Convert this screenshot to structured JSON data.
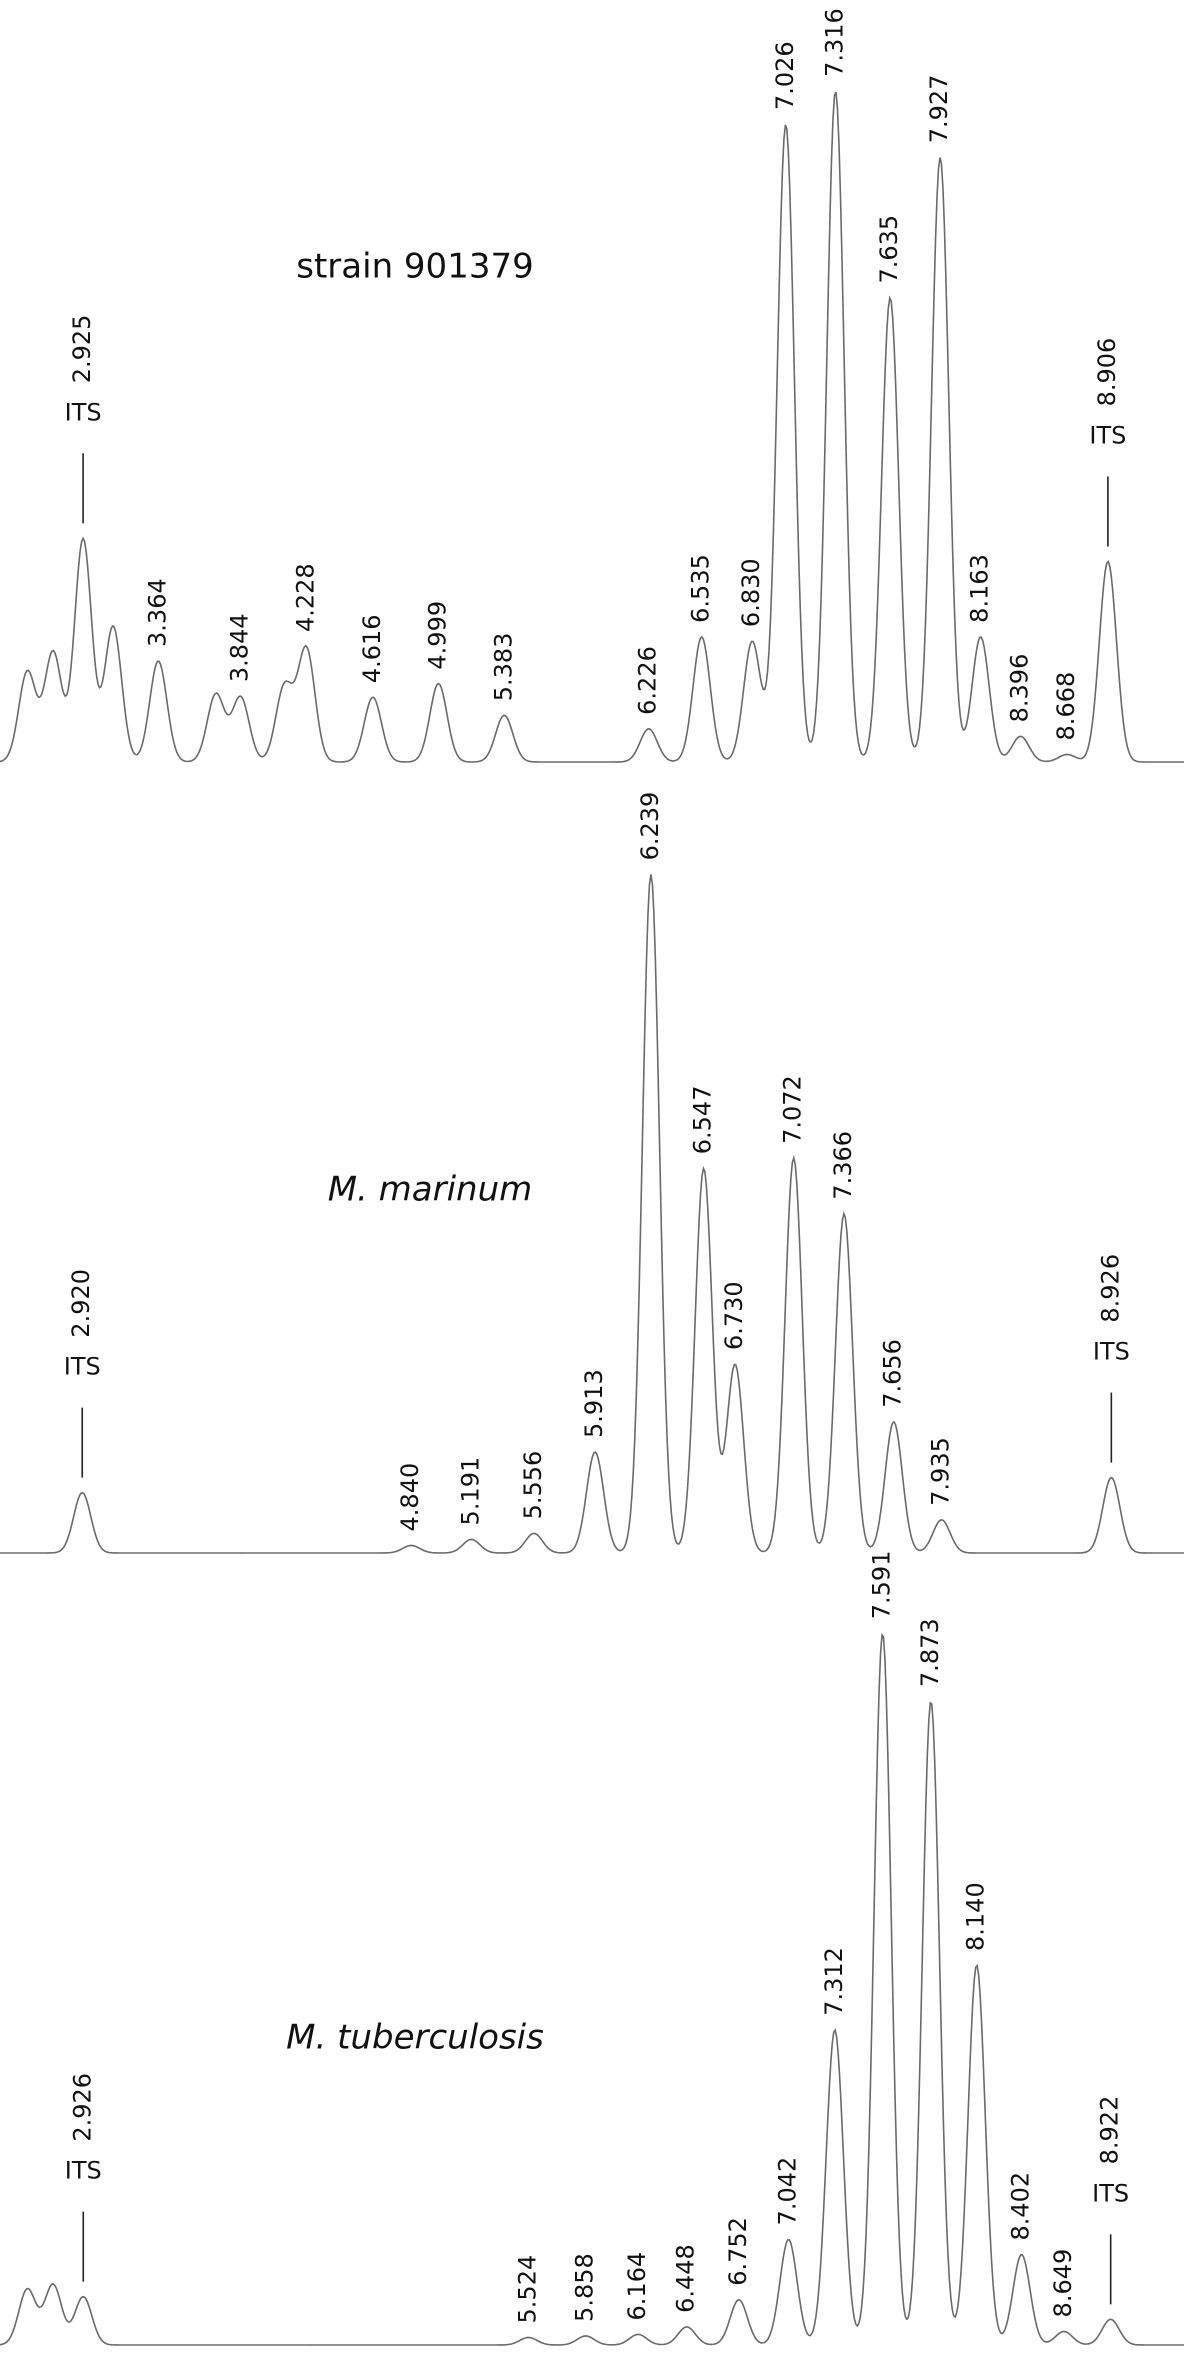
{
  "chart_data": [
    {
      "type": "chromatogram",
      "title": "strain 901379",
      "title_italic": false,
      "xlim": [
        2.44,
        9.35
      ],
      "peaks": [
        {
          "label": null,
          "x": 2.6,
          "height": 60
        },
        {
          "label": null,
          "x": 2.75,
          "height": 73
        },
        {
          "label": "2.925",
          "x": 2.925,
          "height": 148,
          "tag": "ITS"
        },
        {
          "label": null,
          "x": 3.1,
          "height": 90
        },
        {
          "label": "3.364",
          "x": 3.364,
          "height": 67
        },
        {
          "label": null,
          "x": 3.7,
          "height": 45
        },
        {
          "label": "3.844",
          "x": 3.844,
          "height": 43
        },
        {
          "label": null,
          "x": 4.1,
          "height": 50
        },
        {
          "label": "4.228",
          "x": 4.228,
          "height": 75
        },
        {
          "label": "4.616",
          "x": 4.616,
          "height": 43
        },
        {
          "label": "4.999",
          "x": 4.999,
          "height": 52
        },
        {
          "label": "5.383",
          "x": 5.383,
          "height": 31
        },
        {
          "label": "6.226",
          "x": 6.226,
          "height": 22
        },
        {
          "label": "6.535",
          "x": 6.535,
          "height": 83
        },
        {
          "label": "6.830",
          "x": 6.83,
          "height": 80
        },
        {
          "label": "7.026",
          "x": 7.026,
          "height": 423
        },
        {
          "label": "7.316",
          "x": 7.316,
          "height": 445
        },
        {
          "label": "7.635",
          "x": 7.635,
          "height": 308
        },
        {
          "label": "7.927",
          "x": 7.927,
          "height": 401
        },
        {
          "label": "8.163",
          "x": 8.163,
          "height": 83
        },
        {
          "label": "8.396",
          "x": 8.396,
          "height": 17
        },
        {
          "label": "8.668",
          "x": 8.668,
          "height": 5
        },
        {
          "label": "8.906",
          "x": 8.906,
          "height": 133,
          "tag": "ITS"
        }
      ]
    },
    {
      "type": "chromatogram",
      "title": "M. marinum",
      "title_italic": true,
      "xlim": [
        2.44,
        9.35
      ],
      "peaks": [
        {
          "label": "2.920",
          "x": 2.92,
          "height": 40,
          "tag": "ITS"
        },
        {
          "label": "4.840",
          "x": 4.84,
          "height": 5
        },
        {
          "label": "5.191",
          "x": 5.191,
          "height": 9
        },
        {
          "label": "5.556",
          "x": 5.556,
          "height": 13
        },
        {
          "label": "5.913",
          "x": 5.913,
          "height": 67
        },
        {
          "label": "6.239",
          "x": 6.239,
          "height": 450
        },
        {
          "label": "6.547",
          "x": 6.547,
          "height": 255
        },
        {
          "label": "6.730",
          "x": 6.73,
          "height": 125
        },
        {
          "label": "7.072",
          "x": 7.072,
          "height": 262
        },
        {
          "label": "7.366",
          "x": 7.366,
          "height": 225
        },
        {
          "label": "7.656",
          "x": 7.656,
          "height": 87
        },
        {
          "label": "7.935",
          "x": 7.935,
          "height": 22
        },
        {
          "label": "8.926",
          "x": 8.926,
          "height": 50,
          "tag": "ITS"
        }
      ]
    },
    {
      "type": "chromatogram",
      "title": "M. tuberculosis",
      "title_italic": true,
      "xlim": [
        2.44,
        9.35
      ],
      "peaks": [
        {
          "label": null,
          "x": 2.6,
          "height": 37
        },
        {
          "label": null,
          "x": 2.75,
          "height": 40
        },
        {
          "label": "2.926",
          "x": 2.926,
          "height": 32,
          "tag": "ITS"
        },
        {
          "label": "5.524",
          "x": 5.524,
          "height": 5
        },
        {
          "label": "5.858",
          "x": 5.858,
          "height": 6
        },
        {
          "label": "6.164",
          "x": 6.164,
          "height": 7
        },
        {
          "label": "6.448",
          "x": 6.448,
          "height": 12
        },
        {
          "label": "6.752",
          "x": 6.752,
          "height": 30
        },
        {
          "label": "7.042",
          "x": 7.042,
          "height": 70
        },
        {
          "label": "7.312",
          "x": 7.312,
          "height": 209
        },
        {
          "label": "7.591",
          "x": 7.591,
          "height": 472
        },
        {
          "label": "7.873",
          "x": 7.873,
          "height": 427
        },
        {
          "label": "8.140",
          "x": 8.14,
          "height": 252
        },
        {
          "label": "8.402",
          "x": 8.402,
          "height": 60
        },
        {
          "label": "8.649",
          "x": 8.649,
          "height": 9
        },
        {
          "label": "8.922",
          "x": 8.922,
          "height": 17,
          "tag": "ITS"
        }
      ]
    }
  ]
}
